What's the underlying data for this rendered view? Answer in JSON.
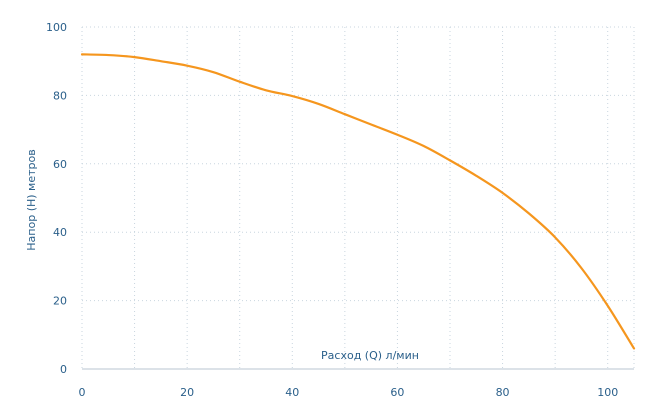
{
  "chart_data": {
    "type": "line",
    "xlabel": "Расход (Q) л/мин",
    "ylabel": "Напор (H) метров",
    "xlim": [
      0,
      105
    ],
    "ylim": [
      0,
      100
    ],
    "xticks": [
      0,
      20,
      40,
      60,
      80,
      100
    ],
    "yticks": [
      0,
      20,
      40,
      60,
      80,
      100
    ],
    "grid": true,
    "series": [
      {
        "color": "#f5961e",
        "x": [
          0,
          5,
          10,
          15,
          20,
          25,
          30,
          35,
          40,
          45,
          50,
          55,
          60,
          65,
          70,
          75,
          80,
          85,
          90,
          95,
          100,
          105
        ],
        "y": [
          92,
          91.8,
          91.2,
          90,
          88.7,
          86.8,
          84,
          81.5,
          79.8,
          77.5,
          74.5,
          71.5,
          68.5,
          65.2,
          61,
          56.5,
          51.5,
          45.5,
          38.5,
          29.5,
          18.5,
          6
        ]
      }
    ]
  }
}
